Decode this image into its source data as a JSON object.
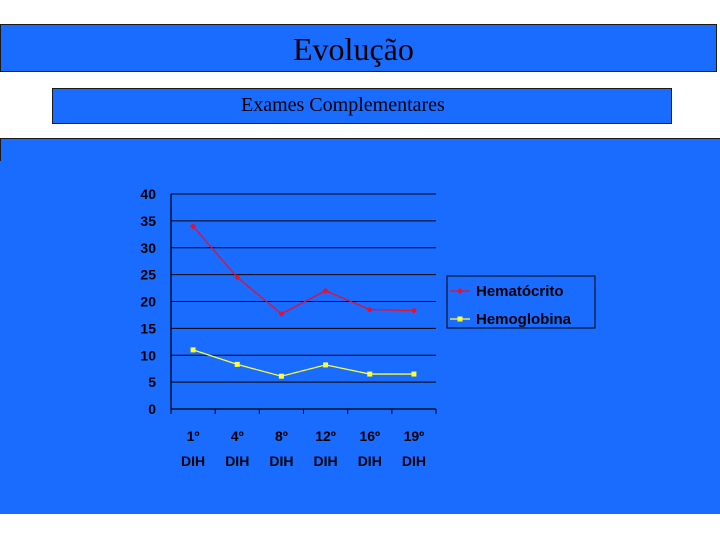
{
  "slide": {
    "title": "Evolução",
    "subtitle": "Exames Complementares"
  },
  "colors": {
    "background": "#1a6bff",
    "hematocrito": "#e8102a",
    "hemoglobina": "#ffff33"
  },
  "chart_data": {
    "type": "line",
    "categories_line1": [
      "1º",
      "4º",
      "8º",
      "12º",
      "16º",
      "19º"
    ],
    "categories_line2": [
      "DIH",
      "DIH",
      "DIH",
      "DIH",
      "DIH",
      "DIH"
    ],
    "categories": [
      "1º DIH",
      "4º DIH",
      "8º DIH",
      "12º DIH",
      "16º DIH",
      "19º DIH"
    ],
    "ylim": [
      0,
      40
    ],
    "yticks": [
      "0",
      "5",
      "10",
      "15",
      "20",
      "25",
      "30",
      "35",
      "40"
    ],
    "grid": "horizontal",
    "legend": "right",
    "series": [
      {
        "name": "Hematócrito",
        "values": [
          34,
          24.5,
          17.7,
          22,
          18.5,
          18.3
        ]
      },
      {
        "name": "Hemoglobina",
        "values": [
          11,
          8.3,
          6.1,
          8.2,
          6.5,
          6.5
        ]
      }
    ]
  }
}
